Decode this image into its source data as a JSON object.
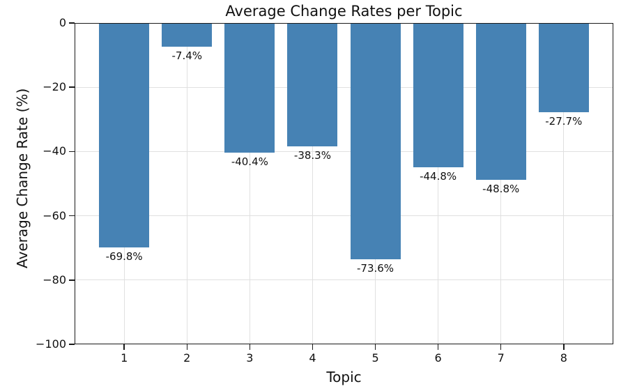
{
  "chart_data": {
    "type": "bar",
    "title": "Average Change Rates per Topic",
    "xlabel": "Topic",
    "ylabel": "Average Change Rate (%)",
    "categories": [
      "1",
      "2",
      "3",
      "4",
      "5",
      "6",
      "7",
      "8"
    ],
    "values": [
      -69.8,
      -7.4,
      -40.4,
      -38.3,
      -73.6,
      -44.8,
      -48.8,
      -27.7
    ],
    "bar_labels": [
      "-69.8%",
      "-7.4%",
      "-40.4%",
      "-38.3%",
      "-73.6%",
      "-44.8%",
      "-48.8%",
      "-27.7%"
    ],
    "ylim": [
      -100,
      0
    ],
    "xlim": [
      0.21,
      8.79
    ],
    "yticks": [
      0,
      -20,
      -40,
      -60,
      -80,
      -100
    ],
    "ytick_labels": [
      "0",
      "−20",
      "−40",
      "−60",
      "−80",
      "−100"
    ],
    "bar_width_units": 0.8,
    "bar_color": "#4682b4",
    "grid": true,
    "grid_color": "#e0e0e0",
    "legend": "none"
  }
}
